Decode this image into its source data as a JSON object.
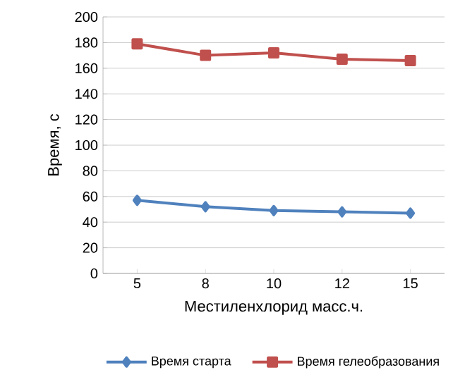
{
  "chart_data": {
    "type": "line",
    "xlabel": "Местиленхлорид масс.ч.",
    "ylabel": "Время, с",
    "categories": [
      "5",
      "8",
      "10",
      "12",
      "15"
    ],
    "series": [
      {
        "name": "Время старта",
        "color": "#4f81bd",
        "marker": "diamond",
        "values": [
          57,
          52,
          49,
          48,
          47
        ]
      },
      {
        "name": "Время гелеобразования",
        "color": "#c0504d",
        "marker": "square",
        "values": [
          179,
          170,
          172,
          167,
          166
        ]
      }
    ],
    "ylim": [
      0,
      200
    ],
    "yticks": [
      0,
      20,
      40,
      60,
      80,
      100,
      120,
      140,
      160,
      180,
      200
    ],
    "grid": "y",
    "legend": "bottom"
  }
}
